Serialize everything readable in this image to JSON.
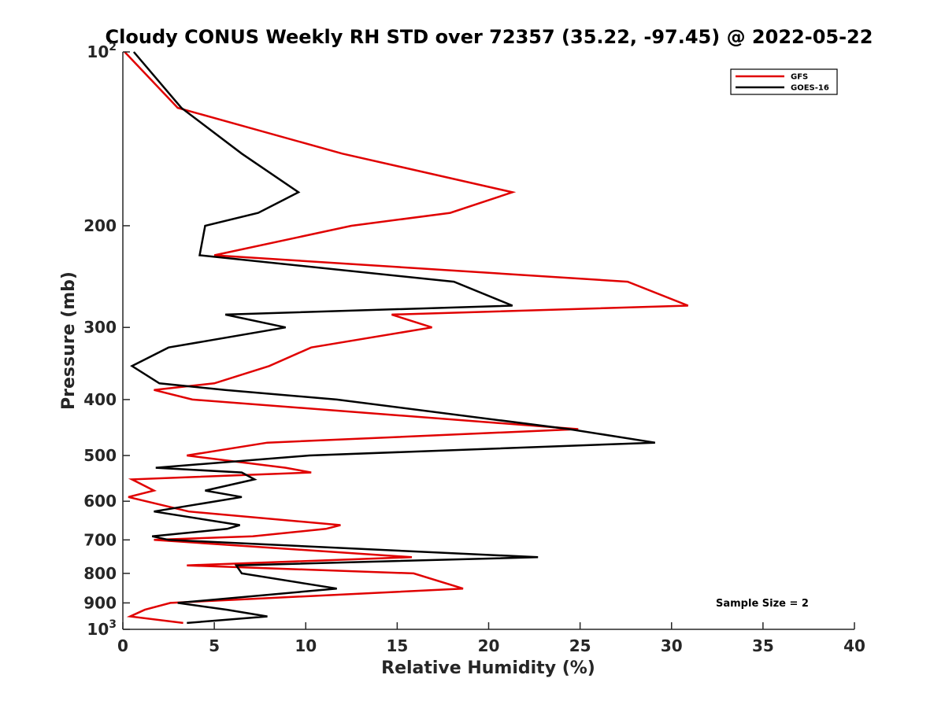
{
  "chart_data": {
    "type": "line",
    "title": "Cloudy CONUS Weekly RH STD over 72357 (35.22, -97.45) @ 2022-05-22",
    "xlabel": "Relative Humidity (%)",
    "ylabel": "Pressure (mb)",
    "xlim": [
      0,
      40
    ],
    "ylim": [
      100,
      1000
    ],
    "yscale": "log",
    "y_reversed": true,
    "x_ticks": [
      0,
      5,
      10,
      15,
      20,
      25,
      30,
      35,
      40
    ],
    "x_tick_labels": [
      "0",
      "5",
      "10",
      "15",
      "20",
      "25",
      "30",
      "35",
      "40"
    ],
    "y_ticks": [
      100,
      200,
      300,
      400,
      500,
      600,
      700,
      800,
      900,
      1000
    ],
    "y_tick_labels": [
      {
        "base": "10",
        "exp": "2"
      },
      {
        "base": "200",
        "exp": ""
      },
      {
        "base": "300",
        "exp": ""
      },
      {
        "base": "400",
        "exp": ""
      },
      {
        "base": "500",
        "exp": ""
      },
      {
        "base": "600",
        "exp": ""
      },
      {
        "base": "700",
        "exp": ""
      },
      {
        "base": "800",
        "exp": ""
      },
      {
        "base": "900",
        "exp": ""
      },
      {
        "base": "10",
        "exp": "3"
      }
    ],
    "legend_position": "top-right",
    "grid": false,
    "annotation": "Sample Size = 2",
    "series": [
      {
        "name": "GFS",
        "color": "#e00000",
        "points": [
          [
            0.1,
            100
          ],
          [
            3.0,
            125
          ],
          [
            12.0,
            150
          ],
          [
            21.3,
            175
          ],
          [
            17.9,
            190
          ],
          [
            12.5,
            200
          ],
          [
            5.0,
            225
          ],
          [
            27.6,
            250
          ],
          [
            30.9,
            275
          ],
          [
            14.7,
            285
          ],
          [
            16.9,
            300
          ],
          [
            10.3,
            325
          ],
          [
            8.0,
            350
          ],
          [
            5.0,
            375
          ],
          [
            1.7,
            385
          ],
          [
            3.8,
            400
          ],
          [
            24.9,
            450
          ],
          [
            7.9,
            475
          ],
          [
            3.5,
            500
          ],
          [
            8.9,
            525
          ],
          [
            10.3,
            535
          ],
          [
            0.5,
            550
          ],
          [
            1.7,
            575
          ],
          [
            0.3,
            590
          ],
          [
            3.6,
            625
          ],
          [
            11.9,
            660
          ],
          [
            11.1,
            670
          ],
          [
            7.1,
            690
          ],
          [
            1.7,
            700
          ],
          [
            15.8,
            750
          ],
          [
            3.5,
            775
          ],
          [
            15.9,
            800
          ],
          [
            18.6,
            850
          ],
          [
            2.6,
            900
          ],
          [
            1.2,
            925
          ],
          [
            0.4,
            950
          ],
          [
            3.3,
            975
          ]
        ]
      },
      {
        "name": "GOES-16",
        "color": "#000000",
        "points": [
          [
            0.6,
            100
          ],
          [
            3.2,
            125
          ],
          [
            6.5,
            150
          ],
          [
            9.6,
            175
          ],
          [
            7.4,
            190
          ],
          [
            4.5,
            200
          ],
          [
            4.2,
            225
          ],
          [
            18.1,
            250
          ],
          [
            21.3,
            275
          ],
          [
            5.6,
            285
          ],
          [
            8.9,
            300
          ],
          [
            2.5,
            325
          ],
          [
            0.5,
            350
          ],
          [
            2.0,
            375
          ],
          [
            5.6,
            385
          ],
          [
            11.7,
            400
          ],
          [
            24.4,
            450
          ],
          [
            29.1,
            475
          ],
          [
            10.2,
            500
          ],
          [
            1.8,
            525
          ],
          [
            6.5,
            535
          ],
          [
            7.2,
            550
          ],
          [
            4.5,
            575
          ],
          [
            6.5,
            590
          ],
          [
            1.7,
            625
          ],
          [
            6.4,
            660
          ],
          [
            5.7,
            670
          ],
          [
            1.6,
            690
          ],
          [
            2.5,
            700
          ],
          [
            22.7,
            750
          ],
          [
            6.2,
            775
          ],
          [
            6.5,
            800
          ],
          [
            11.7,
            850
          ],
          [
            3.0,
            900
          ],
          [
            5.7,
            925
          ],
          [
            7.9,
            950
          ],
          [
            3.5,
            975
          ]
        ]
      }
    ]
  }
}
